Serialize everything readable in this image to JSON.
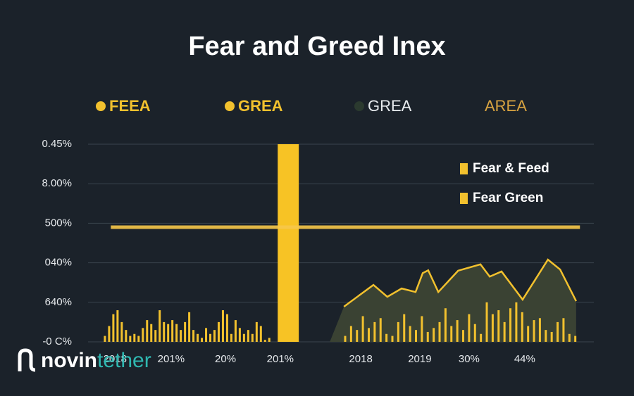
{
  "chart_data": {
    "type": "bar",
    "title": "Fear and Greed Inex",
    "legend_top": [
      {
        "name": "FEEA",
        "color": "#f2c12e"
      },
      {
        "name": "GREA",
        "color": "#f2c12e"
      },
      {
        "name": "GREA",
        "color": "#2b3a2f"
      },
      {
        "name": "AREA",
        "color": "#d9a441"
      }
    ],
    "legend_position": "upper right",
    "ylim": [
      0,
      5
    ],
    "yticks": [
      {
        "value": 0,
        "label": "-0 C%"
      },
      {
        "value": 1,
        "label": "640%"
      },
      {
        "value": 2,
        "label": "040%"
      },
      {
        "value": 3,
        "label": "500%"
      },
      {
        "value": 4,
        "label": "8.00%"
      },
      {
        "value": 5,
        "label": "0.45%"
      }
    ],
    "xlim": [
      0,
      120
    ],
    "xticks": [
      {
        "value": 6.4,
        "label": "2018"
      },
      {
        "value": 19.7,
        "label": "201%"
      },
      {
        "value": 32.6,
        "label": "20%"
      },
      {
        "value": 45.6,
        "label": "201%"
      },
      {
        "value": 64.7,
        "label": "2018"
      },
      {
        "value": 78.7,
        "label": "2019"
      },
      {
        "value": 90.4,
        "label": "30%"
      },
      {
        "value": 103.6,
        "label": "44%"
      }
    ],
    "grid": true,
    "series": [
      {
        "name": "Fear & Feed",
        "color": "#f2c12e",
        "x": [
          4,
          5,
          6,
          7,
          8,
          9,
          10,
          11,
          12,
          13,
          14,
          15,
          16,
          17,
          18,
          19,
          20,
          21,
          22,
          23,
          24,
          25,
          26,
          27,
          28,
          29,
          30,
          31,
          32,
          33,
          34,
          35,
          36,
          37,
          38,
          39,
          40,
          41,
          42,
          43
        ],
        "values": [
          0.15,
          0.4,
          0.7,
          0.8,
          0.5,
          0.3,
          0.15,
          0.2,
          0.15,
          0.35,
          0.55,
          0.45,
          0.3,
          0.8,
          0.5,
          0.45,
          0.55,
          0.45,
          0.3,
          0.5,
          0.75,
          0.3,
          0.2,
          0.1,
          0.35,
          0.2,
          0.3,
          0.5,
          0.8,
          0.7,
          0.2,
          0.55,
          0.35,
          0.2,
          0.3,
          0.2,
          0.5,
          0.4,
          0.05,
          0.1
        ]
      },
      {
        "name": "Fear Green",
        "color": "#f2c12e",
        "x": [
          61,
          62.4,
          63.8,
          65.2,
          66.6,
          68,
          69.4,
          70.8,
          72.2,
          73.6,
          75,
          76.4,
          77.8,
          79.2,
          80.6,
          82,
          83.4,
          84.8,
          86.2,
          87.6,
          89,
          90.4,
          91.8,
          93.2,
          94.6,
          96,
          97.4,
          98.8,
          100.2,
          101.6,
          103,
          104.4,
          105.8,
          107.2,
          108.6,
          110,
          111.4,
          112.8,
          114.2,
          115.6
        ],
        "values": [
          0.15,
          0.4,
          0.3,
          0.65,
          0.35,
          0.5,
          0.6,
          0.2,
          0.15,
          0.5,
          0.7,
          0.4,
          0.3,
          0.65,
          0.25,
          0.35,
          0.5,
          0.85,
          0.4,
          0.55,
          0.3,
          0.7,
          0.45,
          0.2,
          1.0,
          0.7,
          0.8,
          0.5,
          0.85,
          1.0,
          0.75,
          0.4,
          0.55,
          0.6,
          0.3,
          0.25,
          0.5,
          0.6,
          0.2,
          0.15
        ]
      }
    ],
    "highlight": {
      "x": 47.5,
      "width": 5,
      "value": 5,
      "color": "#f7c325"
    },
    "hline": {
      "value": 2.9,
      "x": [
        5.4,
        116.7
      ],
      "color": "#f7c84a"
    },
    "area": {
      "color": "#f2c12e",
      "fill": "#3a4233",
      "x": [
        60.7,
        67.7,
        71.0,
        74.4,
        77.7,
        79.4,
        80.7,
        83.1,
        87.8,
        93.1,
        95.3,
        98.1,
        103.1,
        109.1,
        112.0,
        115.8
      ],
      "values": [
        0.89,
        1.44,
        1.14,
        1.35,
        1.26,
        1.74,
        1.81,
        1.26,
        1.8,
        1.96,
        1.65,
        1.78,
        1.07,
        2.08,
        1.83,
        1.03
      ]
    },
    "watermark": {
      "part1": "novin",
      "part2": "tether"
    }
  }
}
